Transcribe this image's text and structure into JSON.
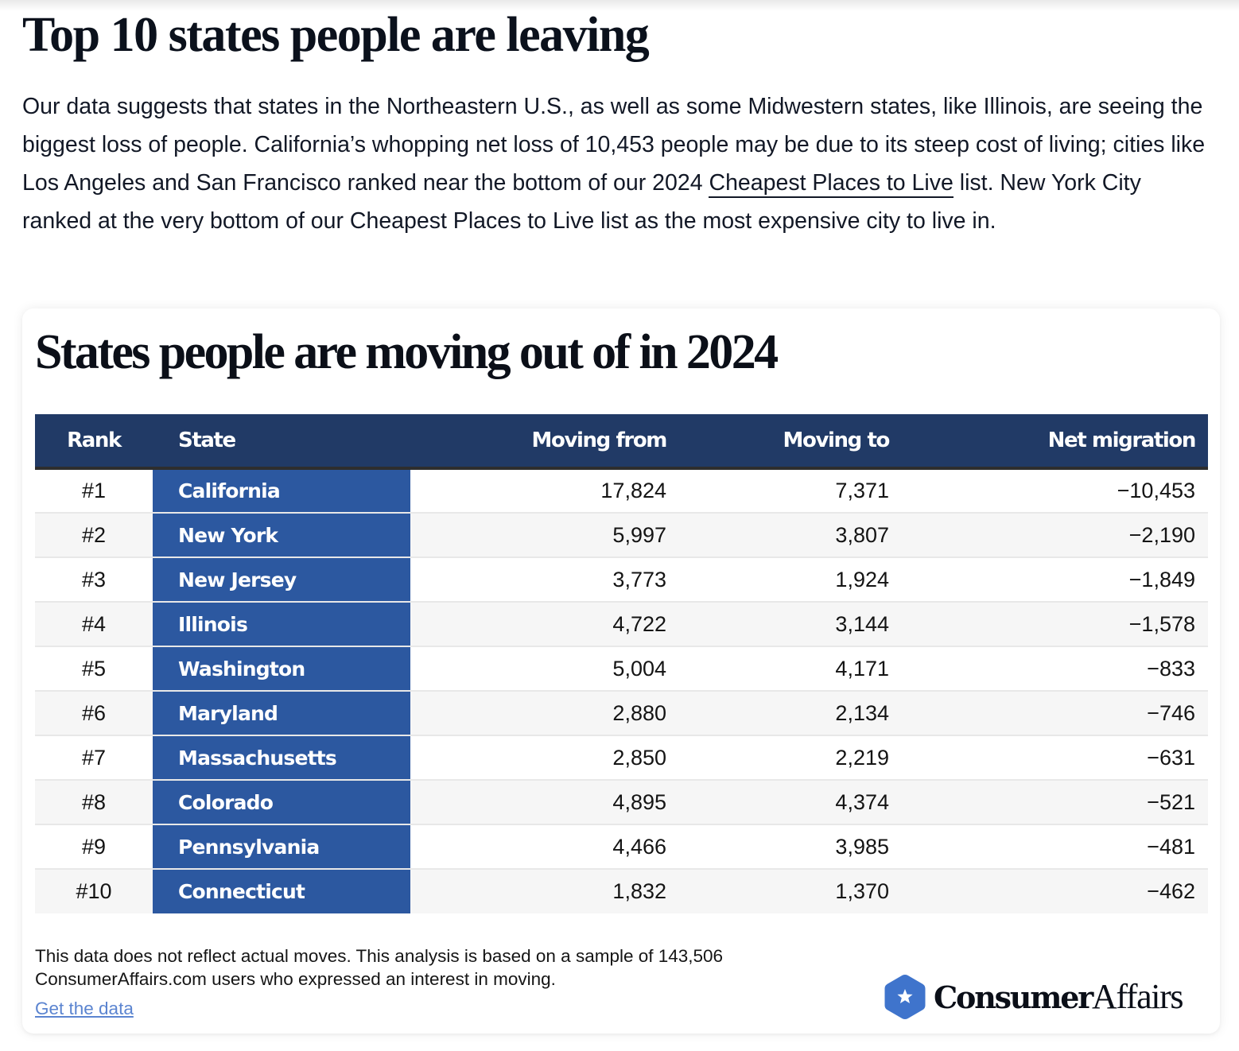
{
  "article": {
    "title": "Top 10 states people are leaving",
    "intro": {
      "before_link": "Our data suggests that states in the Northeastern U.S., as well as some Midwestern states, like Illinois, are seeing the biggest loss of people. California’s whopping net loss of 10,453 people may be due to its steep cost of living; cities like Los Angeles and San Francisco ranked near the bottom of our 2024 ",
      "link_text": "Cheapest Places to Live",
      "after_link": " list. New York City ranked at the very bottom of our Cheapest Places to Live list as the most expensive city to live in."
    }
  },
  "card": {
    "title": "States people are moving out of in 2024",
    "table": {
      "headers": {
        "rank": "Rank",
        "state": "State",
        "moving_from": "Moving from",
        "moving_to": "Moving to",
        "net_migration": "Net migration"
      },
      "rows": [
        {
          "rank": "#1",
          "state": "California",
          "moving_from": "17,824",
          "moving_to": "7,371",
          "net_migration": "−10,453"
        },
        {
          "rank": "#2",
          "state": "New York",
          "moving_from": "5,997",
          "moving_to": "3,807",
          "net_migration": "−2,190"
        },
        {
          "rank": "#3",
          "state": "New Jersey",
          "moving_from": "3,773",
          "moving_to": "1,924",
          "net_migration": "−1,849"
        },
        {
          "rank": "#4",
          "state": "Illinois",
          "moving_from": "4,722",
          "moving_to": "3,144",
          "net_migration": "−1,578"
        },
        {
          "rank": "#5",
          "state": "Washington",
          "moving_from": "5,004",
          "moving_to": "4,171",
          "net_migration": "−833"
        },
        {
          "rank": "#6",
          "state": "Maryland",
          "moving_from": "2,880",
          "moving_to": "2,134",
          "net_migration": "−746"
        },
        {
          "rank": "#7",
          "state": "Massachusetts",
          "moving_from": "2,850",
          "moving_to": "2,219",
          "net_migration": "−631"
        },
        {
          "rank": "#8",
          "state": "Colorado",
          "moving_from": "4,895",
          "moving_to": "4,374",
          "net_migration": "−521"
        },
        {
          "rank": "#9",
          "state": "Pennsylvania",
          "moving_from": "4,466",
          "moving_to": "3,985",
          "net_migration": "−481"
        },
        {
          "rank": "#10",
          "state": "Connecticut",
          "moving_from": "1,832",
          "moving_to": "1,370",
          "net_migration": "−462"
        }
      ]
    },
    "footnote": "This data does not reflect actual moves. This analysis is based on a sample of 143,506 ConsumerAffairs.com users who expressed an interest in moving.",
    "get_data_link": "Get the data",
    "logo": {
      "icon": "star-hexagon-icon",
      "text_bold": "Consumer",
      "text_light": "Affairs"
    }
  },
  "colors": {
    "header_bg": "#213a66",
    "state_column_bg": "#2c58a0",
    "link_blue": "#5b84d0",
    "logo_blue": "#3f74cc",
    "zebra_row": "#f6f6f6"
  }
}
